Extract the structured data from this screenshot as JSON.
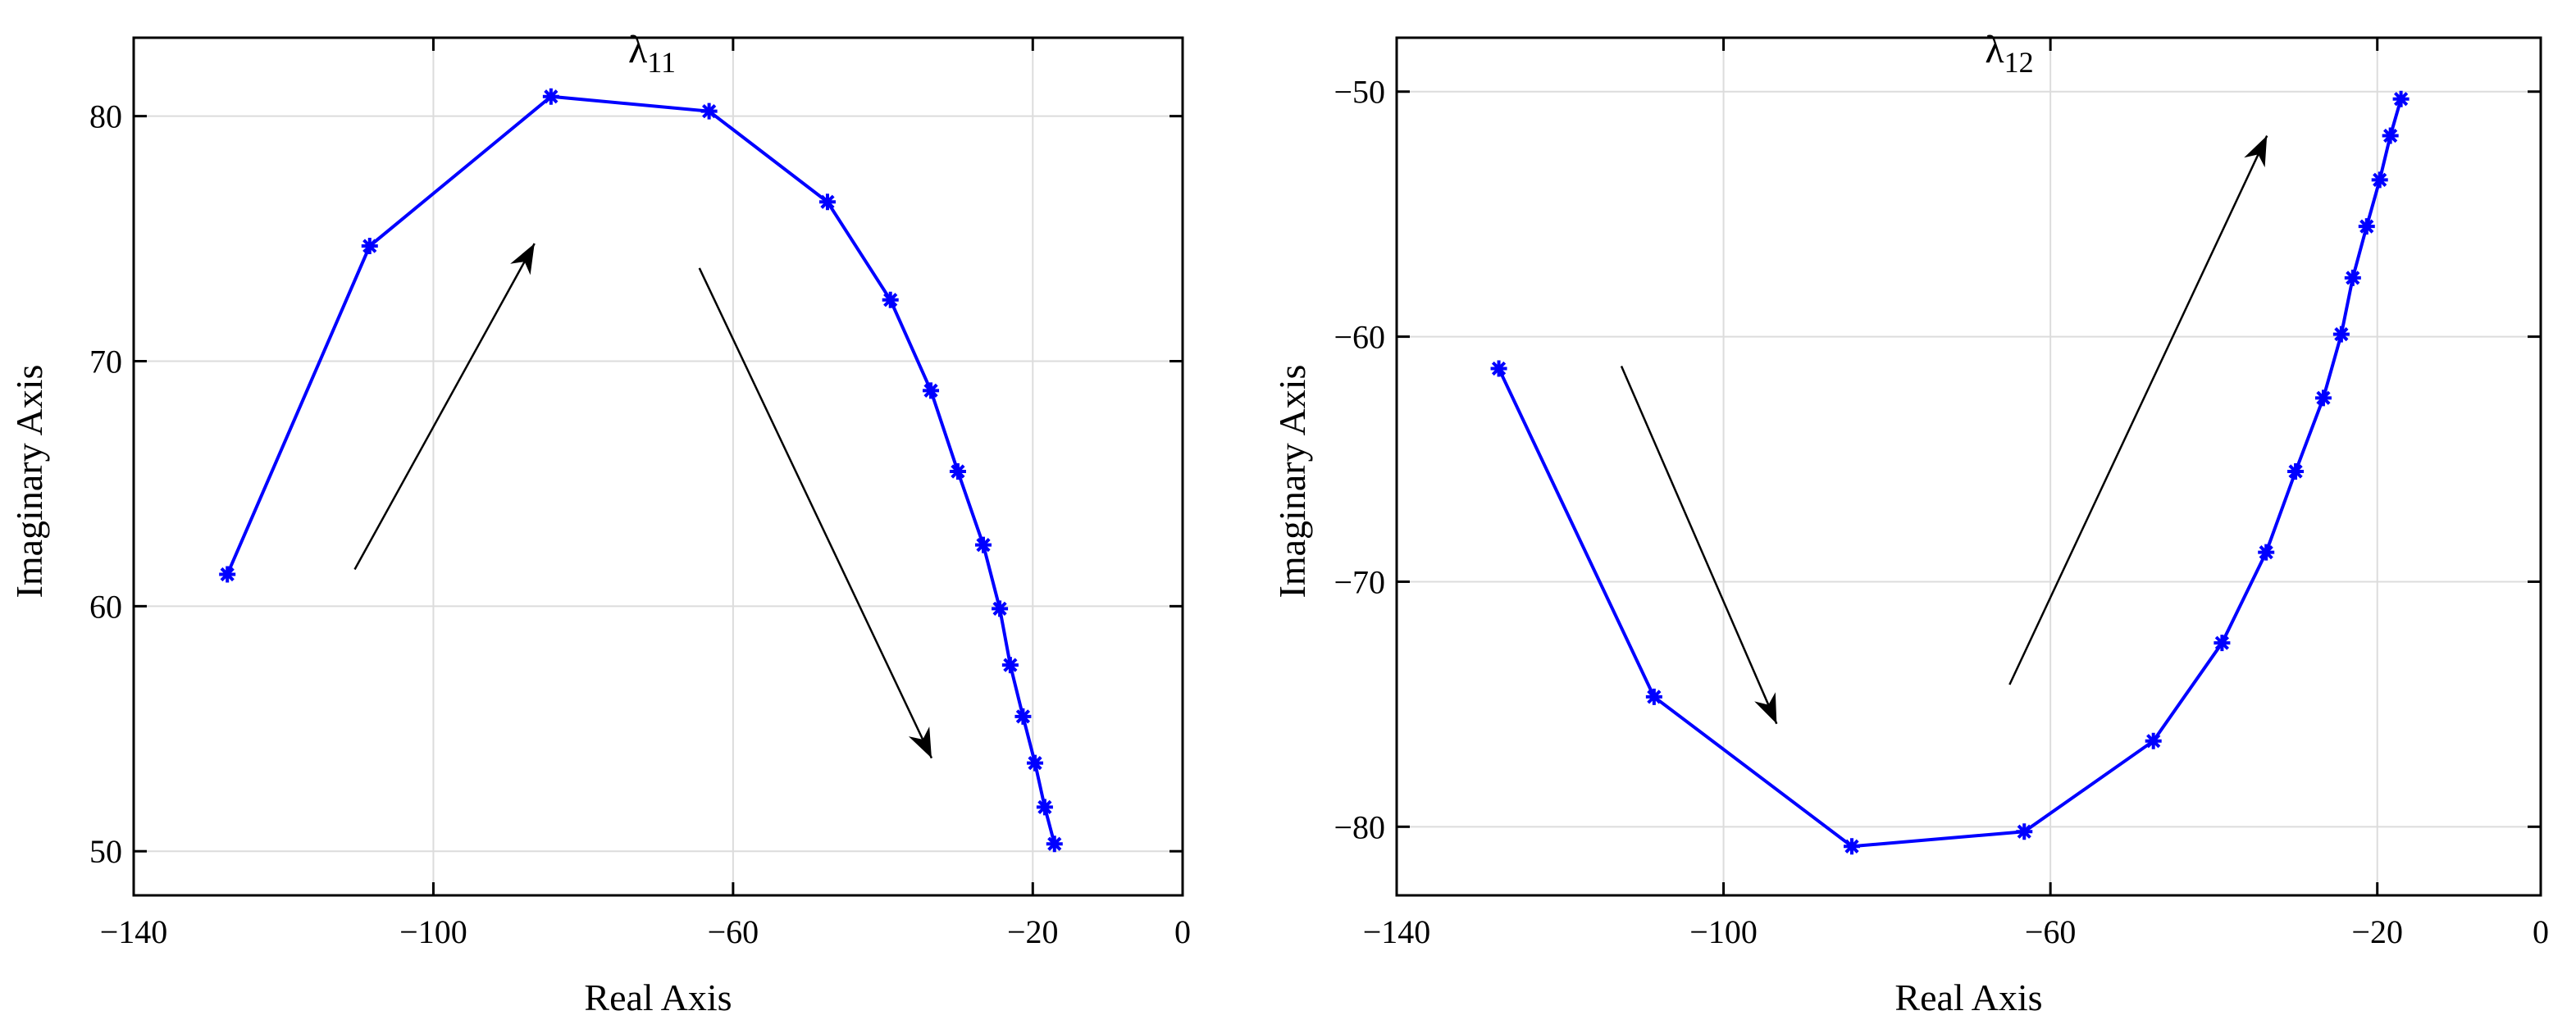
{
  "chart_data": [
    {
      "type": "line",
      "title": "λ11",
      "title_base": "λ",
      "title_sub": "11",
      "xlabel": "Real Axis",
      "ylabel": "Imaginary Axis",
      "xlim": [
        -140,
        0
      ],
      "ylim": [
        48.2,
        83.2
      ],
      "xticks": [
        -140,
        -100,
        -60,
        -20,
        0
      ],
      "yticks": [
        50,
        60,
        70,
        80
      ],
      "grid": true,
      "legend": "none",
      "marker": "asterisk",
      "series": [
        {
          "color": "#0000ff",
          "x": [
            -127.5,
            -108.5,
            -84.3,
            -63.2,
            -47.4,
            -39.0,
            -33.6,
            -30.0,
            -26.6,
            -24.4,
            -23.0,
            -21.3,
            -19.7,
            -18.4,
            -17.1
          ],
          "y": [
            61.3,
            74.7,
            80.8,
            80.2,
            76.5,
            72.5,
            68.8,
            65.5,
            62.5,
            59.9,
            57.6,
            55.5,
            53.6,
            51.8,
            50.3
          ]
        }
      ],
      "arrows": [
        {
          "from": [
            -110.5,
            61.5
          ],
          "to": [
            -86.5,
            74.8
          ]
        },
        {
          "from": [
            -64.5,
            73.8
          ],
          "to": [
            -33.5,
            53.8
          ]
        }
      ]
    },
    {
      "type": "line",
      "title": "λ12",
      "title_base": "λ",
      "title_sub": "12",
      "xlabel": "Real Axis",
      "ylabel": "Imaginary Axis",
      "xlim": [
        -140,
        0
      ],
      "ylim": [
        -82.8,
        -47.8
      ],
      "xticks": [
        -140,
        -100,
        -60,
        -20,
        0
      ],
      "yticks": [
        -80,
        -70,
        -60,
        -50
      ],
      "grid": true,
      "legend": "none",
      "marker": "asterisk",
      "series": [
        {
          "color": "#0000ff",
          "x": [
            -127.5,
            -108.5,
            -84.3,
            -63.2,
            -47.4,
            -39.0,
            -33.6,
            -30.0,
            -26.6,
            -24.4,
            -23.0,
            -21.3,
            -19.7,
            -18.4,
            -17.1
          ],
          "y": [
            -61.3,
            -74.7,
            -80.8,
            -80.2,
            -76.5,
            -72.5,
            -68.8,
            -65.5,
            -62.5,
            -59.9,
            -57.6,
            -55.5,
            -53.6,
            -51.8,
            -50.3
          ]
        }
      ],
      "arrows": [
        {
          "from": [
            -112.5,
            -61.2
          ],
          "to": [
            -93.5,
            -75.8
          ]
        },
        {
          "from": [
            -65.0,
            -74.2
          ],
          "to": [
            -33.5,
            -51.8
          ]
        }
      ]
    }
  ]
}
